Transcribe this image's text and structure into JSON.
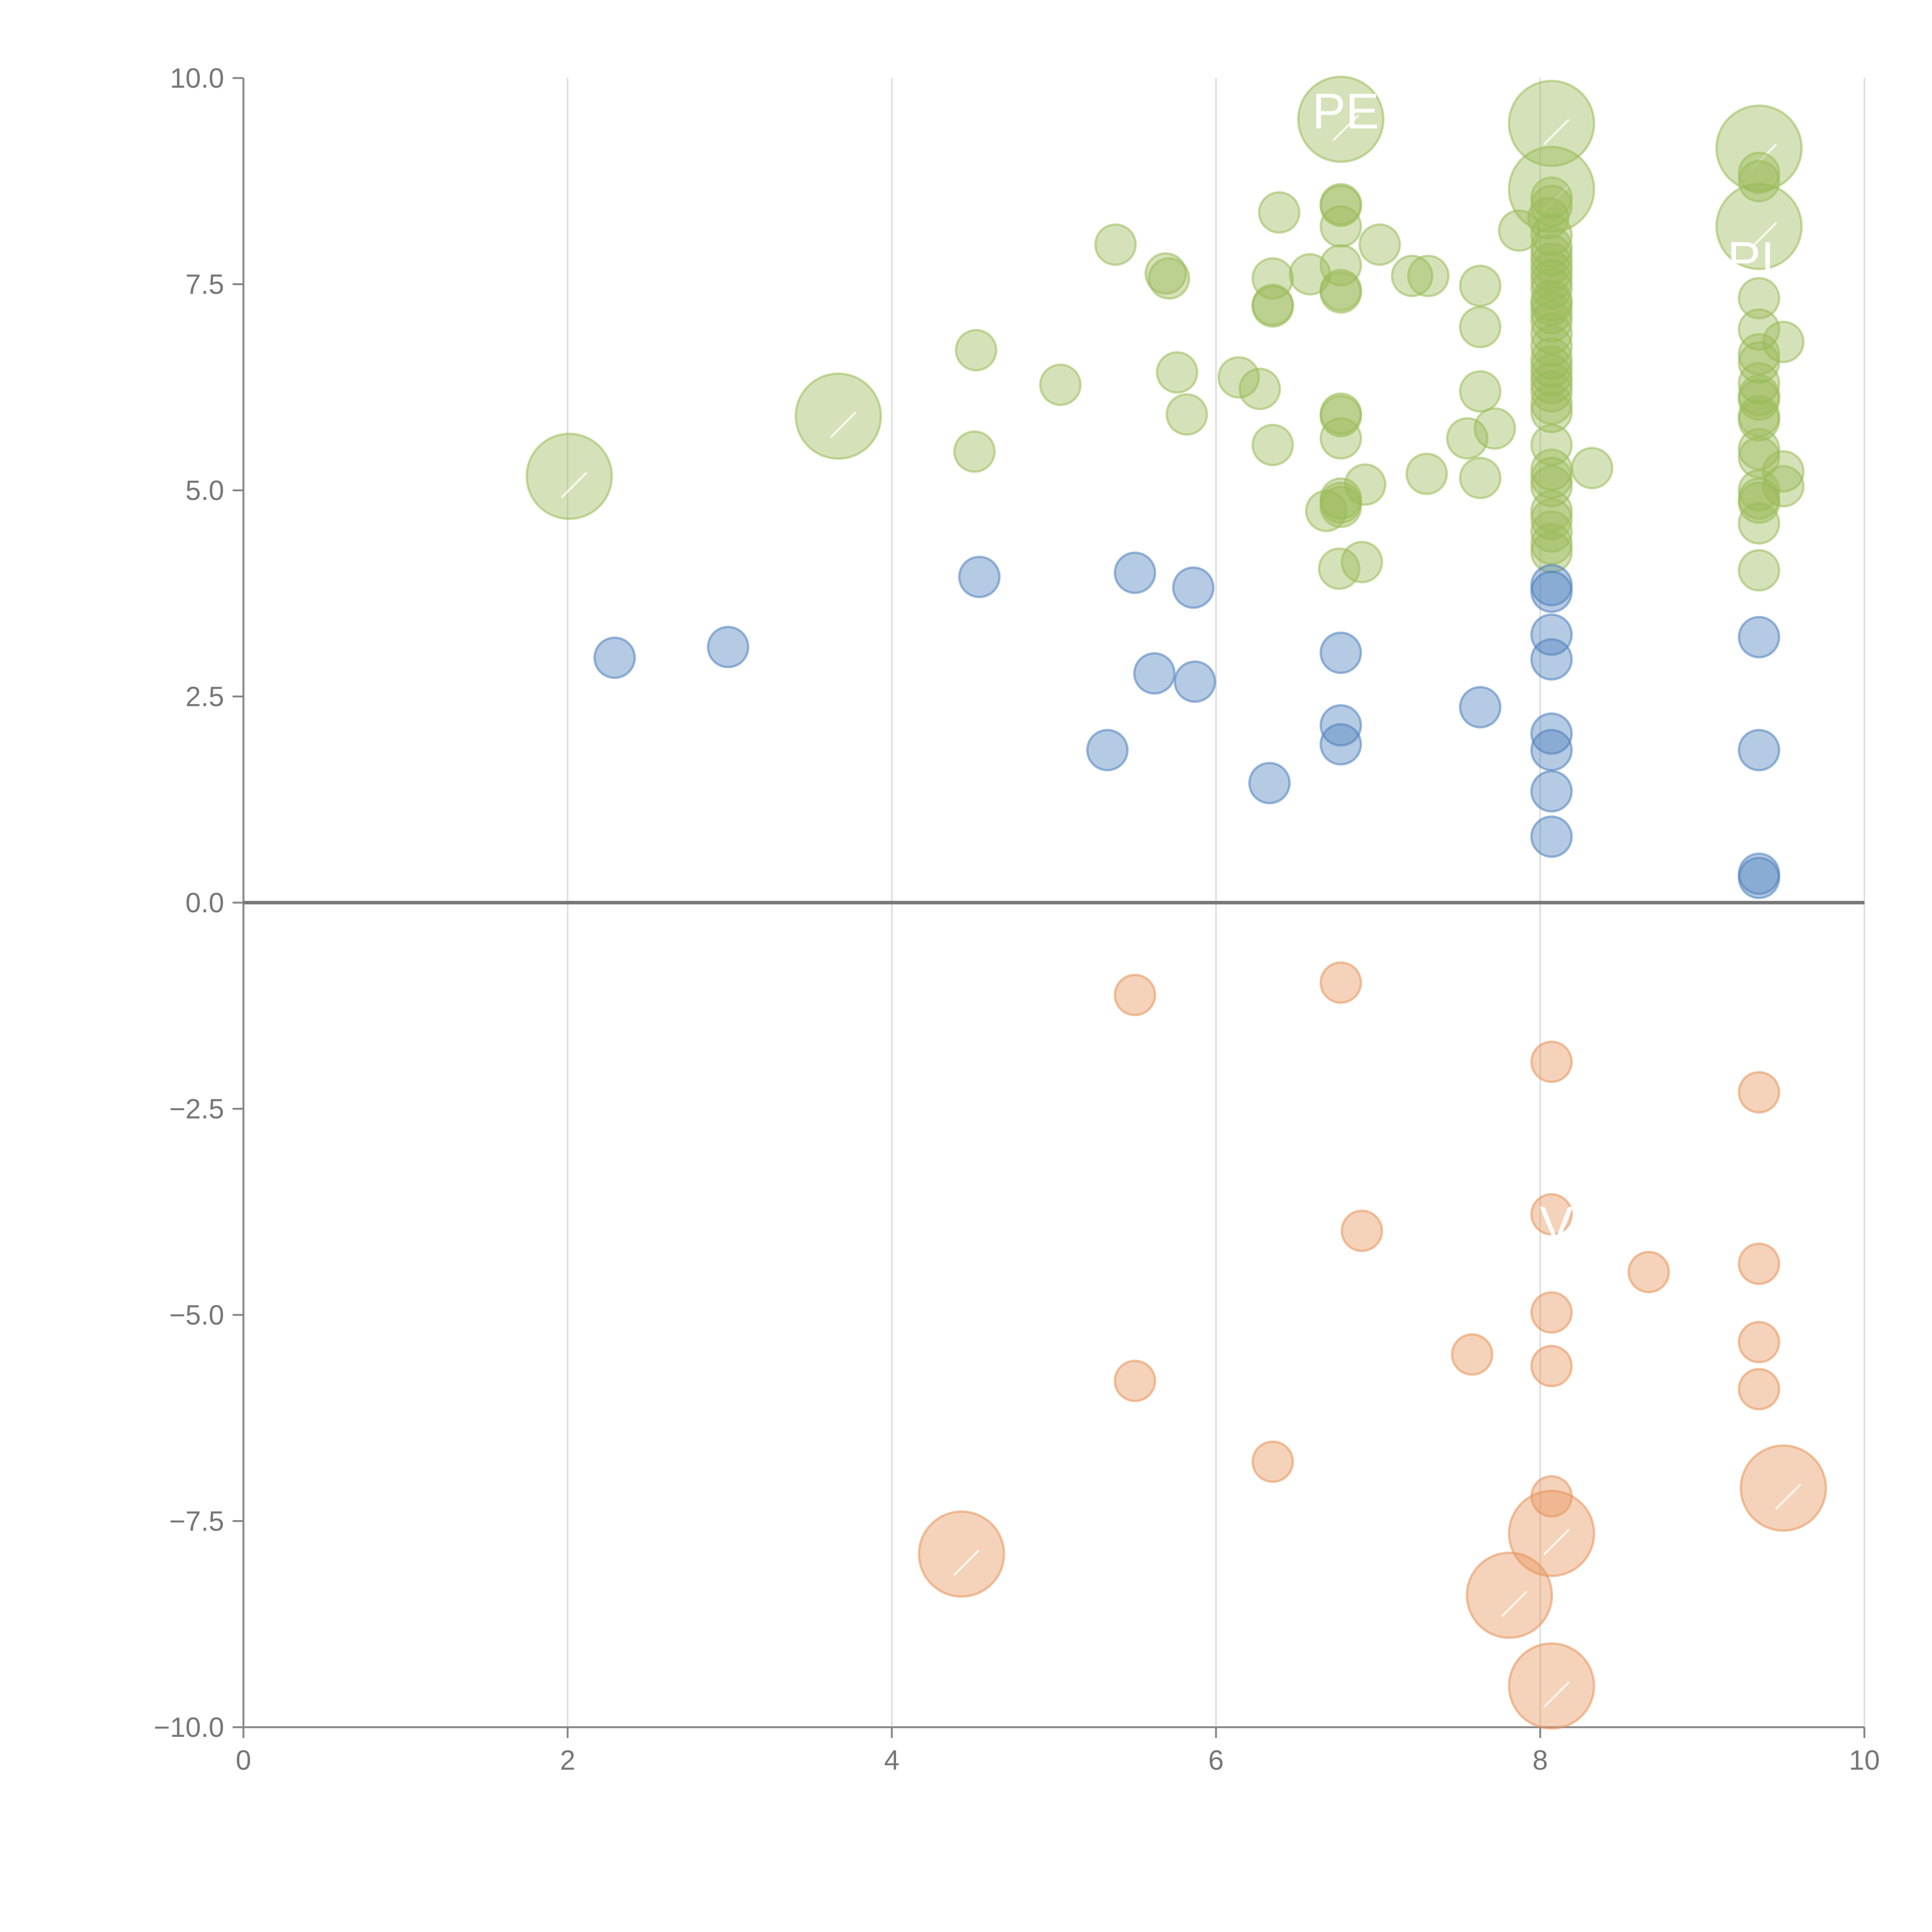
{
  "chart_data": {
    "type": "scatter",
    "title": "",
    "xlabel": "",
    "ylabel": "",
    "xlim": [
      0,
      10
    ],
    "ylim": [
      -10,
      10
    ],
    "x_ticks": [
      0,
      2,
      4,
      6,
      8,
      10
    ],
    "y_ticks": [
      10,
      7.5,
      5,
      2.5,
      0,
      -2.5,
      -5,
      -7.5,
      -10
    ],
    "x_tick_labels": [
      "0",
      "2",
      "4",
      "6",
      "8",
      "10"
    ],
    "y_tick_labels": [
      "10.0",
      "7.5",
      "5.0",
      "2.5",
      "0.0",
      "−2.5",
      "−5.0",
      "−7.5",
      "−10.0"
    ],
    "grid": "vertical",
    "zero_line": true,
    "annotations": [
      {
        "text": "PE",
        "x": 6.8,
        "y": 9.6
      },
      {
        "text": "PІ",
        "x": 9.3,
        "y": 7.8
      },
      {
        "text": "V",
        "x": 8.1,
        "y": -3.9
      }
    ],
    "colors": {
      "green": "#9bbb59",
      "blue": "#4f81bd",
      "orange": "#e6935a",
      "axis": "#888888",
      "grid": "#dddddd"
    },
    "series": [
      {
        "name": "green",
        "color": "#9bbb59",
        "points": [
          [
            2.01,
            5.17,
            4
          ],
          [
            3.67,
            5.9,
            4
          ],
          [
            6.77,
            9.5,
            4
          ],
          [
            8.07,
            9.45,
            4
          ],
          [
            8.07,
            8.65,
            4
          ],
          [
            9.35,
            9.15,
            4
          ],
          [
            9.35,
            8.2,
            4
          ],
          [
            4.52,
            6.7,
            1
          ],
          [
            4.51,
            5.47,
            1
          ],
          [
            5.04,
            6.28,
            1
          ],
          [
            5.38,
            7.98,
            1
          ],
          [
            5.69,
            7.63,
            1
          ],
          [
            5.71,
            7.57,
            1
          ],
          [
            5.76,
            6.43,
            1
          ],
          [
            5.82,
            5.92,
            1
          ],
          [
            6.14,
            6.37,
            1
          ],
          [
            6.27,
            6.23,
            1
          ],
          [
            6.35,
            7.57,
            1
          ],
          [
            6.35,
            7.25,
            1
          ],
          [
            6.35,
            7.23,
            1
          ],
          [
            6.35,
            5.55,
            1
          ],
          [
            6.39,
            8.37,
            1
          ],
          [
            6.58,
            7.62,
            1
          ],
          [
            6.68,
            4.75,
            1
          ],
          [
            6.76,
            4.05,
            1
          ],
          [
            6.77,
            8.47,
            1
          ],
          [
            6.77,
            8.45,
            1
          ],
          [
            6.77,
            8.2,
            1
          ],
          [
            6.77,
            7.73,
            1
          ],
          [
            6.77,
            7.43,
            1
          ],
          [
            6.77,
            7.4,
            1
          ],
          [
            6.77,
            5.93,
            1
          ],
          [
            6.77,
            5.9,
            1
          ],
          [
            6.77,
            5.63,
            1
          ],
          [
            6.77,
            4.9,
            1
          ],
          [
            6.77,
            4.85,
            1
          ],
          [
            6.77,
            4.8,
            1
          ],
          [
            6.9,
            4.13,
            1
          ],
          [
            6.92,
            5.07,
            1
          ],
          [
            7.01,
            7.98,
            1
          ],
          [
            7.21,
            7.6,
            1
          ],
          [
            7.3,
            5.2,
            1
          ],
          [
            7.31,
            7.6,
            1
          ],
          [
            7.55,
            5.63,
            1
          ],
          [
            7.63,
            7.48,
            1
          ],
          [
            7.63,
            6.98,
            1
          ],
          [
            7.63,
            6.2,
            1
          ],
          [
            7.63,
            5.15,
            1
          ],
          [
            7.72,
            5.75,
            1
          ],
          [
            7.87,
            8.15,
            1
          ],
          [
            8.05,
            8.3,
            1
          ],
          [
            8.07,
            8.55,
            1
          ],
          [
            8.07,
            8.45,
            1
          ],
          [
            8.07,
            8.1,
            1
          ],
          [
            8.07,
            7.95,
            1
          ],
          [
            8.07,
            7.85,
            1
          ],
          [
            8.07,
            7.75,
            1
          ],
          [
            8.07,
            7.65,
            1
          ],
          [
            8.07,
            7.55,
            1
          ],
          [
            8.07,
            7.45,
            1
          ],
          [
            8.07,
            7.3,
            1
          ],
          [
            8.07,
            7.25,
            1
          ],
          [
            8.07,
            7.15,
            1
          ],
          [
            8.07,
            7.05,
            1
          ],
          [
            8.07,
            6.9,
            1
          ],
          [
            8.07,
            6.75,
            1
          ],
          [
            8.07,
            6.6,
            1
          ],
          [
            8.07,
            6.5,
            1
          ],
          [
            8.07,
            6.4,
            1
          ],
          [
            8.07,
            6.3,
            1
          ],
          [
            8.07,
            6.2,
            1
          ],
          [
            8.07,
            6.05,
            1
          ],
          [
            8.07,
            5.95,
            1
          ],
          [
            8.07,
            5.55,
            1
          ],
          [
            8.07,
            5.25,
            1
          ],
          [
            8.07,
            5.15,
            1
          ],
          [
            8.07,
            5.05,
            1
          ],
          [
            8.07,
            4.75,
            1
          ],
          [
            8.07,
            4.65,
            1
          ],
          [
            8.07,
            4.5,
            1
          ],
          [
            8.07,
            4.35,
            1
          ],
          [
            8.07,
            4.25,
            1
          ],
          [
            8.32,
            5.27,
            1
          ],
          [
            9.35,
            8.85,
            1
          ],
          [
            9.35,
            8.75,
            1
          ],
          [
            9.35,
            7.33,
            1
          ],
          [
            9.35,
            6.95,
            1
          ],
          [
            9.35,
            6.65,
            1
          ],
          [
            9.35,
            6.55,
            1
          ],
          [
            9.35,
            6.3,
            1
          ],
          [
            9.35,
            6.15,
            1
          ],
          [
            9.35,
            6.1,
            1
          ],
          [
            9.35,
            5.9,
            1
          ],
          [
            9.35,
            5.85,
            1
          ],
          [
            9.35,
            5.5,
            1
          ],
          [
            9.35,
            5.4,
            1
          ],
          [
            9.35,
            5.0,
            1
          ],
          [
            9.35,
            4.9,
            1
          ],
          [
            9.35,
            4.85,
            1
          ],
          [
            9.35,
            4.6,
            1
          ],
          [
            9.35,
            4.03,
            1
          ],
          [
            9.5,
            6.8,
            1
          ],
          [
            9.5,
            5.23,
            1
          ],
          [
            9.5,
            5.05,
            1
          ]
        ]
      },
      {
        "name": "blue",
        "color": "#4f81bd",
        "points": [
          [
            2.29,
            2.97,
            1
          ],
          [
            2.99,
            3.1,
            1
          ],
          [
            4.54,
            3.95,
            1
          ],
          [
            5.33,
            1.85,
            1
          ],
          [
            5.5,
            4.0,
            1
          ],
          [
            5.62,
            2.78,
            1
          ],
          [
            5.86,
            3.82,
            1
          ],
          [
            5.87,
            2.68,
            1
          ],
          [
            6.33,
            1.45,
            1
          ],
          [
            6.77,
            3.03,
            1
          ],
          [
            6.77,
            2.15,
            1
          ],
          [
            6.77,
            1.92,
            1
          ],
          [
            7.63,
            2.37,
            1
          ],
          [
            8.07,
            3.85,
            1
          ],
          [
            8.07,
            3.77,
            1
          ],
          [
            8.07,
            3.25,
            1
          ],
          [
            8.07,
            2.95,
            1
          ],
          [
            8.07,
            2.05,
            1
          ],
          [
            8.07,
            1.85,
            1
          ],
          [
            8.07,
            1.35,
            1
          ],
          [
            8.07,
            0.8,
            1
          ],
          [
            9.35,
            3.22,
            1
          ],
          [
            9.35,
            1.85,
            1
          ],
          [
            9.35,
            0.35,
            1
          ],
          [
            9.35,
            0.3,
            1
          ]
        ]
      },
      {
        "name": "orange",
        "color": "#e6935a",
        "points": [
          [
            4.43,
            -7.9,
            4
          ],
          [
            7.81,
            -8.4,
            4
          ],
          [
            8.07,
            -7.65,
            4
          ],
          [
            8.07,
            -9.5,
            4
          ],
          [
            9.5,
            -7.1,
            4
          ],
          [
            5.5,
            -1.12,
            1
          ],
          [
            5.5,
            -5.8,
            1
          ],
          [
            6.35,
            -6.78,
            1
          ],
          [
            6.77,
            -0.97,
            1
          ],
          [
            6.9,
            -3.98,
            1
          ],
          [
            7.58,
            -5.48,
            1
          ],
          [
            8.07,
            -1.93,
            1
          ],
          [
            8.07,
            -3.78,
            1
          ],
          [
            8.07,
            -4.97,
            1
          ],
          [
            8.07,
            -5.62,
            1
          ],
          [
            8.07,
            -7.2,
            1
          ],
          [
            8.67,
            -4.48,
            1
          ],
          [
            9.35,
            -2.3,
            1
          ],
          [
            9.35,
            -4.38,
            1
          ],
          [
            9.35,
            -5.33,
            1
          ],
          [
            9.35,
            -5.9,
            1
          ]
        ]
      }
    ]
  }
}
